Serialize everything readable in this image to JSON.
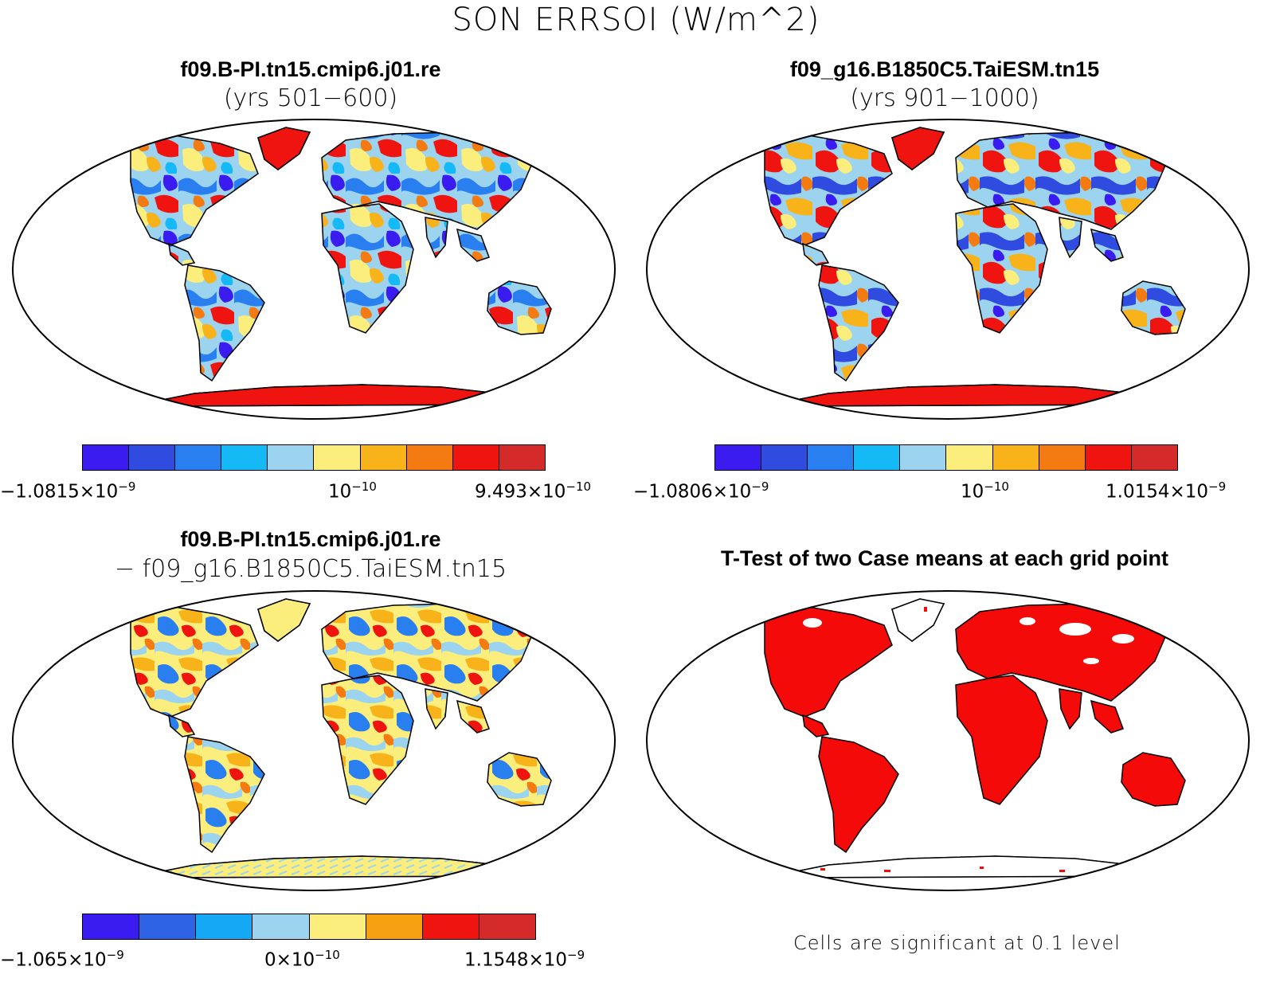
{
  "title": "SON ERRSOI (W/m^2)",
  "panels": [
    {
      "title": "f09.B-PI.tn15.cmip6.j01.re",
      "subtitle": "(yrs 501−600)",
      "colorbar": {
        "colors": [
          "#3b1cf0",
          "#2f4be0",
          "#2a7ff0",
          "#14b9f5",
          "#9cd3ee",
          "#fbee7c",
          "#f8b21a",
          "#f47a12",
          "#f01410",
          "#d42a2a"
        ],
        "labels": [
          {
            "base": "−1.0815×10",
            "exp": "−9"
          },
          {
            "base": "10",
            "exp": "−10"
          },
          {
            "base": "9.493×10",
            "exp": "−10"
          }
        ]
      }
    },
    {
      "title": "f09_g16.B1850C5.TaiESM.tn15",
      "subtitle": "(yrs 901−1000)",
      "colorbar": {
        "colors": [
          "#3b1cf0",
          "#2f4be0",
          "#2a7ff0",
          "#14b9f5",
          "#9cd3ee",
          "#fbee7c",
          "#f8b21a",
          "#f47a12",
          "#f01410",
          "#d42a2a"
        ],
        "labels": [
          {
            "base": "−1.0806×10",
            "exp": "−9"
          },
          {
            "base": "10",
            "exp": "−10"
          },
          {
            "base": "1.0154×10",
            "exp": "−9"
          }
        ]
      }
    },
    {
      "title": "f09.B-PI.tn15.cmip6.j01.re",
      "subtitle": "− f09_g16.B1850C5.TaiESM.tn15",
      "colorbar": {
        "colors": [
          "#3b1cf0",
          "#2f63e6",
          "#14a8f5",
          "#9cd3ee",
          "#fbee7c",
          "#f7a012",
          "#f01410",
          "#d42a2a"
        ],
        "labels": [
          {
            "base": "−1.065×10",
            "exp": "−9"
          },
          {
            "base": "0×10",
            "exp": "−10"
          },
          {
            "base": "1.1548×10",
            "exp": "−9"
          }
        ]
      }
    },
    {
      "title": "T-Test of two Case means at each grid point",
      "note": "Cells are significant at 0.1 level"
    }
  ]
}
